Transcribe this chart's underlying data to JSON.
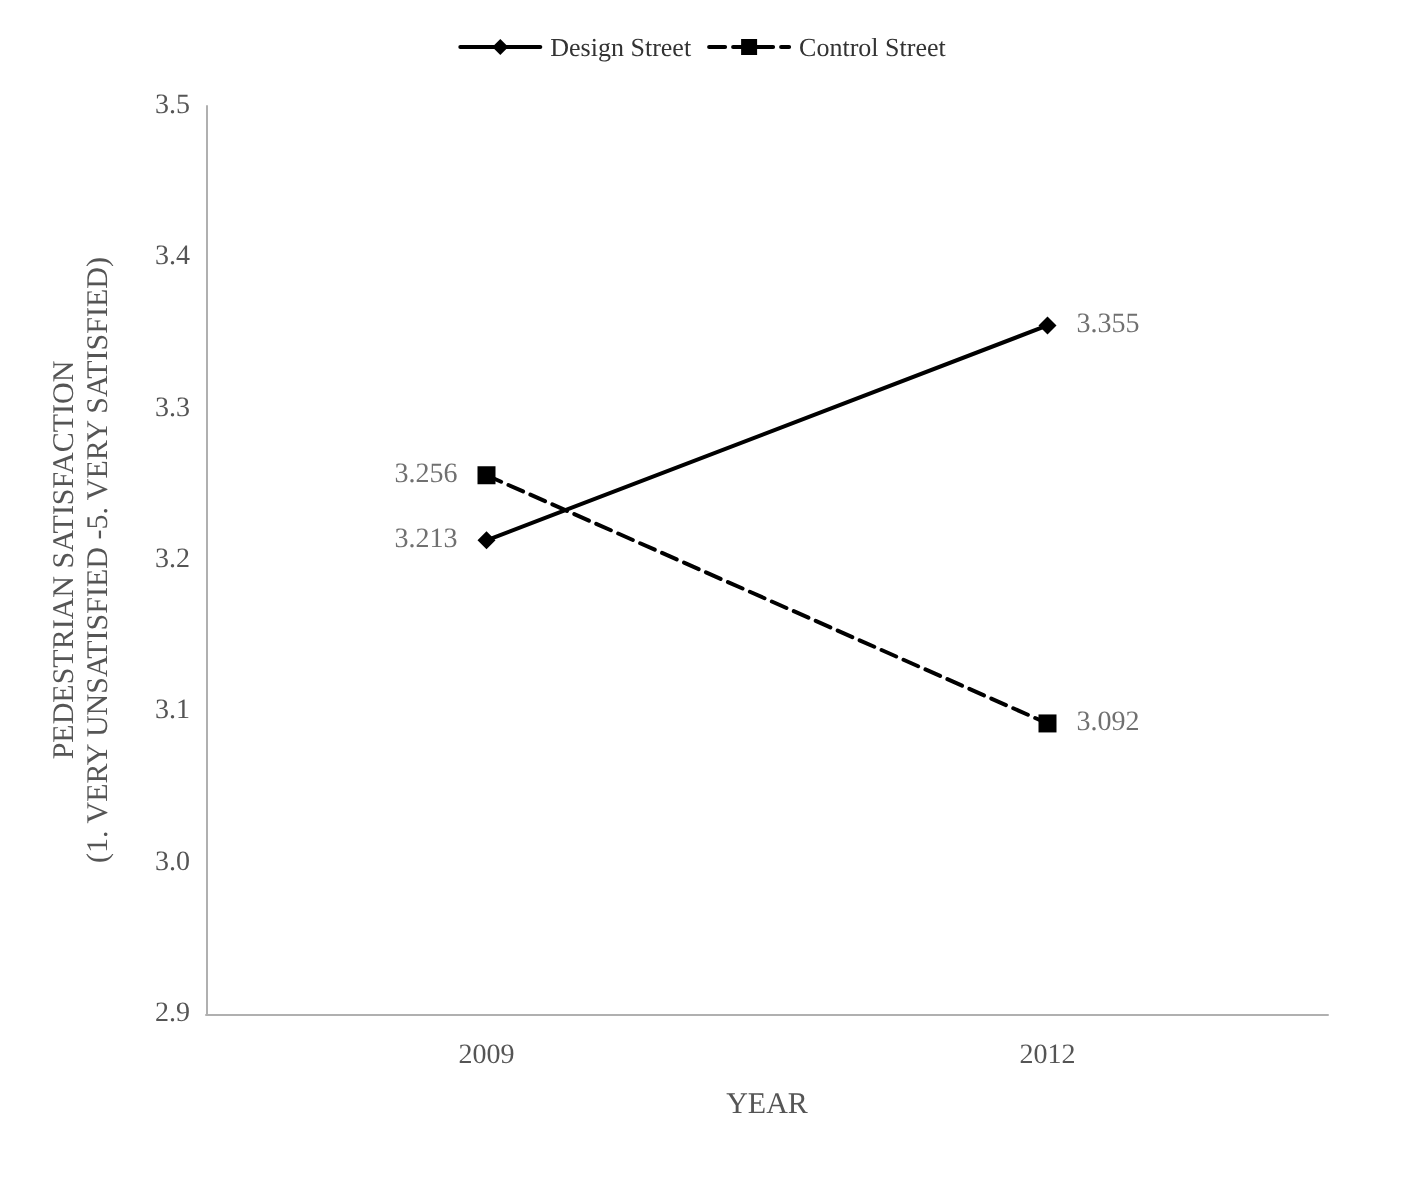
{
  "chart_data": {
    "type": "line",
    "xlabel": "YEAR",
    "ylabel": "PEDESTRIAN SATISFACTION\n(1. VERY UNSATISFIED -5. VERY SATISFIED)",
    "categories": [
      "2009",
      "2012"
    ],
    "series": [
      {
        "name": "Design Street",
        "color": "#000000",
        "values": [
          3.213,
          3.355
        ],
        "marker": "diamond",
        "line_style": "solid"
      },
      {
        "name": "Control Street",
        "color": "#000000",
        "values": [
          3.256,
          3.092
        ],
        "marker": "square",
        "line_style": "dashed"
      }
    ],
    "ylim": [
      2.9,
      3.5
    ],
    "yticks": [
      2.9,
      {
        "value": 3.0,
        "label": "3.0"
      },
      3.1,
      3.2,
      3.3,
      3.4,
      3.5
    ],
    "grid": false,
    "legend": "top",
    "data_labels": true
  }
}
